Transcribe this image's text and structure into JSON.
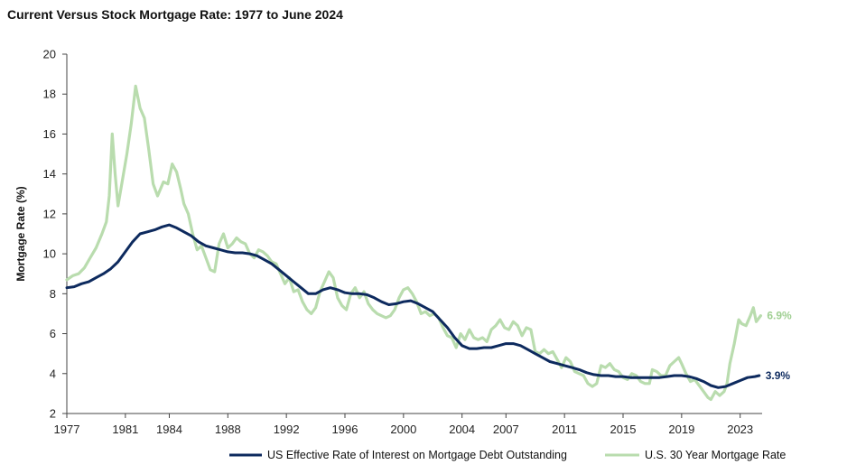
{
  "chart_data": {
    "type": "line",
    "title": "Current Versus Stock Mortgage Rate: 1977 to June 2024",
    "xlabel": "",
    "ylabel": "Mortgage Rate (%)",
    "xlim": [
      1977,
      2024.5
    ],
    "ylim": [
      2,
      20
    ],
    "x_ticks": [
      "1977",
      "1981",
      "1984",
      "1988",
      "1992",
      "1996",
      "2000",
      "2004",
      "2007",
      "2011",
      "2015",
      "2019",
      "2023"
    ],
    "y_ticks": [
      "2",
      "4",
      "6",
      "8",
      "10",
      "12",
      "14",
      "16",
      "18",
      "20"
    ],
    "grid": false,
    "legend_position": "bottom",
    "series": [
      {
        "name": "US Effective Rate of Interest on Mortgage Debt Outstanding",
        "color": "#0d2a5e",
        "end_label": "3.9%",
        "points": [
          [
            1977,
            8.3
          ],
          [
            1977.5,
            8.35
          ],
          [
            1978,
            8.5
          ],
          [
            1978.5,
            8.6
          ],
          [
            1979,
            8.8
          ],
          [
            1979.5,
            9.0
          ],
          [
            1980,
            9.25
          ],
          [
            1980.5,
            9.6
          ],
          [
            1981,
            10.1
          ],
          [
            1981.5,
            10.6
          ],
          [
            1982,
            11.0
          ],
          [
            1982.5,
            11.1
          ],
          [
            1983,
            11.2
          ],
          [
            1983.5,
            11.35
          ],
          [
            1984,
            11.45
          ],
          [
            1984.5,
            11.3
          ],
          [
            1985,
            11.1
          ],
          [
            1985.5,
            10.9
          ],
          [
            1986,
            10.6
          ],
          [
            1986.5,
            10.4
          ],
          [
            1987,
            10.3
          ],
          [
            1987.5,
            10.2
          ],
          [
            1988,
            10.1
          ],
          [
            1988.5,
            10.05
          ],
          [
            1989,
            10.05
          ],
          [
            1989.5,
            10.0
          ],
          [
            1990,
            9.9
          ],
          [
            1990.5,
            9.7
          ],
          [
            1991,
            9.5
          ],
          [
            1991.5,
            9.2
          ],
          [
            1992,
            8.9
          ],
          [
            1992.5,
            8.6
          ],
          [
            1993,
            8.3
          ],
          [
            1993.5,
            8.0
          ],
          [
            1994,
            8.0
          ],
          [
            1994.5,
            8.2
          ],
          [
            1995,
            8.3
          ],
          [
            1995.5,
            8.2
          ],
          [
            1996,
            8.05
          ],
          [
            1996.5,
            8.0
          ],
          [
            1997,
            8.0
          ],
          [
            1997.5,
            7.95
          ],
          [
            1998,
            7.8
          ],
          [
            1998.5,
            7.6
          ],
          [
            1999,
            7.45
          ],
          [
            1999.5,
            7.5
          ],
          [
            2000,
            7.6
          ],
          [
            2000.5,
            7.65
          ],
          [
            2001,
            7.5
          ],
          [
            2001.5,
            7.3
          ],
          [
            2002,
            7.1
          ],
          [
            2002.5,
            6.7
          ],
          [
            2003,
            6.3
          ],
          [
            2003.5,
            5.8
          ],
          [
            2004,
            5.4
          ],
          [
            2004.5,
            5.25
          ],
          [
            2005,
            5.25
          ],
          [
            2005.5,
            5.3
          ],
          [
            2006,
            5.3
          ],
          [
            2006.5,
            5.4
          ],
          [
            2007,
            5.5
          ],
          [
            2007.5,
            5.5
          ],
          [
            2008,
            5.4
          ],
          [
            2008.5,
            5.2
          ],
          [
            2009,
            5.0
          ],
          [
            2009.5,
            4.8
          ],
          [
            2010,
            4.6
          ],
          [
            2010.5,
            4.5
          ],
          [
            2011,
            4.4
          ],
          [
            2011.5,
            4.3
          ],
          [
            2012,
            4.2
          ],
          [
            2012.5,
            4.05
          ],
          [
            2013,
            3.95
          ],
          [
            2013.5,
            3.9
          ],
          [
            2014,
            3.9
          ],
          [
            2014.5,
            3.85
          ],
          [
            2015,
            3.85
          ],
          [
            2015.5,
            3.8
          ],
          [
            2016,
            3.8
          ],
          [
            2016.5,
            3.8
          ],
          [
            2017,
            3.8
          ],
          [
            2017.5,
            3.8
          ],
          [
            2018,
            3.85
          ],
          [
            2018.5,
            3.9
          ],
          [
            2019,
            3.9
          ],
          [
            2019.5,
            3.85
          ],
          [
            2020,
            3.75
          ],
          [
            2020.5,
            3.6
          ],
          [
            2021,
            3.4
          ],
          [
            2021.5,
            3.3
          ],
          [
            2022,
            3.35
          ],
          [
            2022.5,
            3.5
          ],
          [
            2023,
            3.65
          ],
          [
            2023.5,
            3.8
          ],
          [
            2024,
            3.85
          ],
          [
            2024.3,
            3.9
          ]
        ]
      },
      {
        "name": "U.S. 30 Year Mortgage Rate",
        "color": "#b9dcae",
        "end_label": "6.9%",
        "points": [
          [
            1977,
            8.7
          ],
          [
            1977.4,
            8.9
          ],
          [
            1977.8,
            9.0
          ],
          [
            1978.2,
            9.3
          ],
          [
            1978.6,
            9.8
          ],
          [
            1979,
            10.3
          ],
          [
            1979.4,
            11.0
          ],
          [
            1979.7,
            11.6
          ],
          [
            1979.9,
            12.9
          ],
          [
            1980.1,
            16.0
          ],
          [
            1980.3,
            14.0
          ],
          [
            1980.5,
            12.4
          ],
          [
            1980.8,
            13.7
          ],
          [
            1981.1,
            15.0
          ],
          [
            1981.4,
            16.5
          ],
          [
            1981.7,
            18.4
          ],
          [
            1982,
            17.3
          ],
          [
            1982.3,
            16.8
          ],
          [
            1982.6,
            15.2
          ],
          [
            1982.9,
            13.5
          ],
          [
            1983.2,
            12.9
          ],
          [
            1983.6,
            13.6
          ],
          [
            1983.9,
            13.5
          ],
          [
            1984.2,
            14.5
          ],
          [
            1984.5,
            14.1
          ],
          [
            1984.8,
            13.2
          ],
          [
            1985,
            12.5
          ],
          [
            1985.3,
            12.0
          ],
          [
            1985.6,
            11.0
          ],
          [
            1985.9,
            10.2
          ],
          [
            1986.2,
            10.4
          ],
          [
            1986.5,
            9.8
          ],
          [
            1986.8,
            9.2
          ],
          [
            1987.1,
            9.1
          ],
          [
            1987.4,
            10.5
          ],
          [
            1987.7,
            11.0
          ],
          [
            1988,
            10.3
          ],
          [
            1988.3,
            10.5
          ],
          [
            1988.6,
            10.8
          ],
          [
            1988.9,
            10.6
          ],
          [
            1989.2,
            10.5
          ],
          [
            1989.5,
            10.0
          ],
          [
            1989.8,
            9.8
          ],
          [
            1990.1,
            10.2
          ],
          [
            1990.4,
            10.1
          ],
          [
            1990.7,
            9.9
          ],
          [
            1991,
            9.6
          ],
          [
            1991.3,
            9.5
          ],
          [
            1991.6,
            9.0
          ],
          [
            1991.9,
            8.5
          ],
          [
            1992.2,
            8.8
          ],
          [
            1992.5,
            8.1
          ],
          [
            1992.8,
            8.2
          ],
          [
            1993.1,
            7.6
          ],
          [
            1993.4,
            7.2
          ],
          [
            1993.7,
            7.0
          ],
          [
            1994,
            7.3
          ],
          [
            1994.3,
            8.1
          ],
          [
            1994.6,
            8.6
          ],
          [
            1994.9,
            9.1
          ],
          [
            1995.2,
            8.8
          ],
          [
            1995.5,
            7.8
          ],
          [
            1995.8,
            7.4
          ],
          [
            1996.1,
            7.2
          ],
          [
            1996.4,
            8.0
          ],
          [
            1996.7,
            8.3
          ],
          [
            1997,
            7.8
          ],
          [
            1997.3,
            8.1
          ],
          [
            1997.6,
            7.5
          ],
          [
            1997.9,
            7.2
          ],
          [
            1998.2,
            7.0
          ],
          [
            1998.5,
            6.9
          ],
          [
            1998.8,
            6.8
          ],
          [
            1999.1,
            6.9
          ],
          [
            1999.4,
            7.2
          ],
          [
            1999.7,
            7.8
          ],
          [
            2000,
            8.2
          ],
          [
            2000.3,
            8.3
          ],
          [
            2000.6,
            8.0
          ],
          [
            2000.9,
            7.6
          ],
          [
            2001.2,
            7.0
          ],
          [
            2001.5,
            7.1
          ],
          [
            2001.8,
            6.9
          ],
          [
            2002.1,
            7.0
          ],
          [
            2002.4,
            6.8
          ],
          [
            2002.7,
            6.3
          ],
          [
            2003,
            5.9
          ],
          [
            2003.3,
            5.8
          ],
          [
            2003.6,
            5.3
          ],
          [
            2003.9,
            6.0
          ],
          [
            2004.2,
            5.7
          ],
          [
            2004.5,
            6.2
          ],
          [
            2004.8,
            5.8
          ],
          [
            2005.1,
            5.7
          ],
          [
            2005.4,
            5.8
          ],
          [
            2005.7,
            5.6
          ],
          [
            2006,
            6.2
          ],
          [
            2006.3,
            6.4
          ],
          [
            2006.6,
            6.7
          ],
          [
            2006.9,
            6.3
          ],
          [
            2007.2,
            6.2
          ],
          [
            2007.5,
            6.6
          ],
          [
            2007.8,
            6.4
          ],
          [
            2008.1,
            5.9
          ],
          [
            2008.4,
            6.3
          ],
          [
            2008.7,
            6.2
          ],
          [
            2009,
            5.1
          ],
          [
            2009.3,
            5.0
          ],
          [
            2009.6,
            5.2
          ],
          [
            2009.9,
            5.0
          ],
          [
            2010.2,
            5.1
          ],
          [
            2010.5,
            4.7
          ],
          [
            2010.8,
            4.3
          ],
          [
            2011.1,
            4.8
          ],
          [
            2011.4,
            4.6
          ],
          [
            2011.7,
            4.1
          ],
          [
            2012,
            4.0
          ],
          [
            2012.3,
            3.9
          ],
          [
            2012.6,
            3.5
          ],
          [
            2012.9,
            3.35
          ],
          [
            2013.2,
            3.5
          ],
          [
            2013.5,
            4.4
          ],
          [
            2013.8,
            4.3
          ],
          [
            2014.1,
            4.5
          ],
          [
            2014.4,
            4.2
          ],
          [
            2014.7,
            4.1
          ],
          [
            2015,
            3.8
          ],
          [
            2015.3,
            3.7
          ],
          [
            2015.6,
            4.0
          ],
          [
            2015.9,
            3.9
          ],
          [
            2016.2,
            3.6
          ],
          [
            2016.5,
            3.5
          ],
          [
            2016.8,
            3.5
          ],
          [
            2017,
            4.2
          ],
          [
            2017.3,
            4.1
          ],
          [
            2017.6,
            3.9
          ],
          [
            2017.9,
            3.9
          ],
          [
            2018.2,
            4.4
          ],
          [
            2018.5,
            4.6
          ],
          [
            2018.8,
            4.8
          ],
          [
            2019,
            4.5
          ],
          [
            2019.3,
            4.0
          ],
          [
            2019.6,
            3.6
          ],
          [
            2019.9,
            3.7
          ],
          [
            2020.2,
            3.4
          ],
          [
            2020.5,
            3.1
          ],
          [
            2020.8,
            2.8
          ],
          [
            2021,
            2.7
          ],
          [
            2021.3,
            3.1
          ],
          [
            2021.6,
            2.9
          ],
          [
            2021.9,
            3.1
          ],
          [
            2022.1,
            3.5
          ],
          [
            2022.3,
            4.5
          ],
          [
            2022.6,
            5.5
          ],
          [
            2022.9,
            6.7
          ],
          [
            2023.1,
            6.5
          ],
          [
            2023.4,
            6.4
          ],
          [
            2023.7,
            6.9
          ],
          [
            2023.9,
            7.3
          ],
          [
            2024.1,
            6.6
          ],
          [
            2024.4,
            6.9
          ]
        ]
      }
    ]
  }
}
